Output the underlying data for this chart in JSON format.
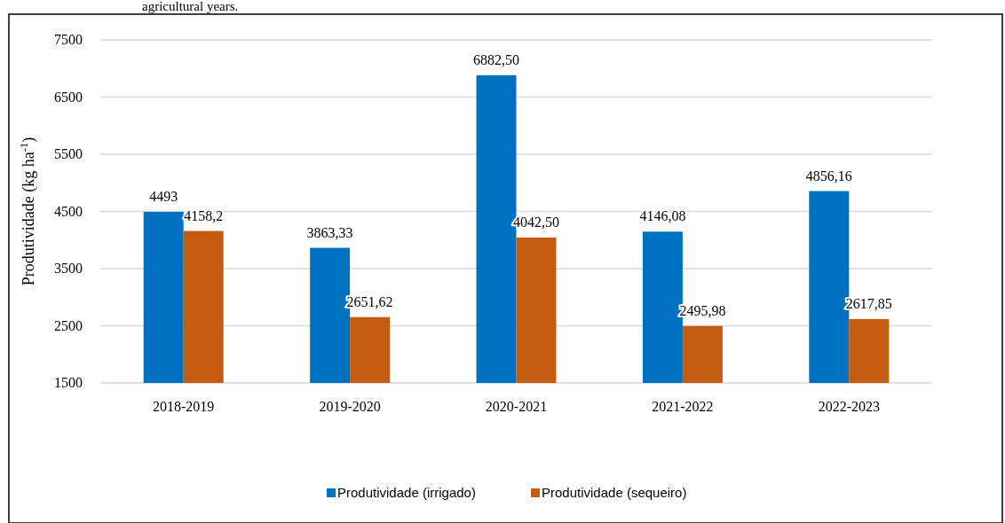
{
  "chart_data": {
    "type": "bar",
    "ylabel": "Produtividade (kg ha$^{-1}$)",
    "annotations": [
      "agricultural years."
    ],
    "categories": [
      "2018-2019",
      "2019-2020",
      "2020-2021",
      "2021-2022",
      "2022-2023"
    ],
    "series": [
      {
        "name": "Produtividade (irrigado)",
        "color": "#0070c0",
        "values": [
          4493,
          3863.33,
          6882.5,
          4146.08,
          4856.16
        ],
        "value_labels": [
          "4493",
          "3863,33",
          "6882,50",
          "4146,08",
          "4856,16"
        ]
      },
      {
        "name": "Produtividade (sequeiro)",
        "color": "#c55a11",
        "values": [
          4158.2,
          2651.62,
          4042.5,
          2495.98,
          2617.85
        ],
        "value_labels": [
          "4158,2",
          "2651,62",
          "4042,50",
          "2495,98",
          "2617,85"
        ]
      }
    ],
    "ylim": [
      1500,
      7500
    ],
    "yticks": [
      1500,
      2500,
      3500,
      4500,
      5500,
      6500,
      7500
    ],
    "grid": "y",
    "legend": "bottom"
  }
}
